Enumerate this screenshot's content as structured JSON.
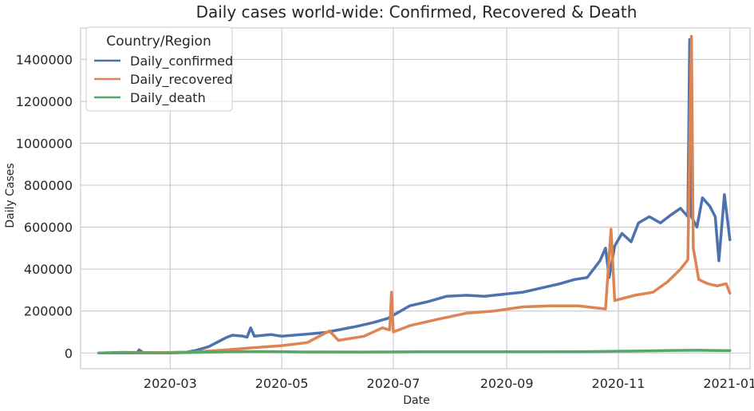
{
  "chart_data": {
    "type": "line",
    "title": "Daily cases world-wide: Confirmed, Recovered & Death",
    "xlabel": "Date",
    "ylabel": "Daily Cases",
    "x_ticks": [
      "2020-03",
      "2020-05",
      "2020-07",
      "2020-09",
      "2020-11",
      "2021-01"
    ],
    "y_ticks": [
      "0",
      "200000",
      "400000",
      "600000",
      "800000",
      "1000000",
      "1200000",
      "1400000"
    ],
    "ylim": [
      -75000,
      1550000
    ],
    "xlim": [
      "2020-01-12",
      "2021-01-12"
    ],
    "grid": true,
    "legend": {
      "title": "Country/Region",
      "placement": "top-left"
    },
    "series": [
      {
        "name": "Daily_confirmed",
        "color": "#4c72b0",
        "points": [
          [
            "2020-01-22",
            0
          ],
          [
            "2020-02-05",
            3000
          ],
          [
            "2020-02-12",
            2000
          ],
          [
            "2020-02-13",
            15000
          ],
          [
            "2020-02-15",
            2500
          ],
          [
            "2020-03-01",
            2000
          ],
          [
            "2020-03-10",
            4000
          ],
          [
            "2020-03-15",
            12000
          ],
          [
            "2020-03-22",
            30000
          ],
          [
            "2020-04-01",
            75000
          ],
          [
            "2020-04-04",
            85000
          ],
          [
            "2020-04-10",
            80000
          ],
          [
            "2020-04-12",
            75000
          ],
          [
            "2020-04-14",
            120000
          ],
          [
            "2020-04-16",
            80000
          ],
          [
            "2020-04-25",
            88000
          ],
          [
            "2020-05-01",
            80000
          ],
          [
            "2020-05-15",
            90000
          ],
          [
            "2020-05-25",
            98000
          ],
          [
            "2020-06-01",
            110000
          ],
          [
            "2020-06-10",
            125000
          ],
          [
            "2020-06-20",
            145000
          ],
          [
            "2020-06-28",
            165000
          ],
          [
            "2020-07-05",
            200000
          ],
          [
            "2020-07-10",
            225000
          ],
          [
            "2020-07-20",
            245000
          ],
          [
            "2020-07-30",
            270000
          ],
          [
            "2020-08-10",
            275000
          ],
          [
            "2020-08-20",
            270000
          ],
          [
            "2020-08-30",
            280000
          ],
          [
            "2020-09-10",
            290000
          ],
          [
            "2020-09-20",
            310000
          ],
          [
            "2020-09-30",
            330000
          ],
          [
            "2020-10-08",
            350000
          ],
          [
            "2020-10-15",
            360000
          ],
          [
            "2020-10-22",
            440000
          ],
          [
            "2020-10-25",
            500000
          ],
          [
            "2020-10-27",
            360000
          ],
          [
            "2020-10-30",
            510000
          ],
          [
            "2020-11-03",
            570000
          ],
          [
            "2020-11-08",
            530000
          ],
          [
            "2020-11-12",
            620000
          ],
          [
            "2020-11-18",
            650000
          ],
          [
            "2020-11-24",
            620000
          ],
          [
            "2020-11-30",
            660000
          ],
          [
            "2020-12-05",
            690000
          ],
          [
            "2020-12-09",
            650000
          ],
          [
            "2020-12-10",
            1495000
          ],
          [
            "2020-12-11",
            650000
          ],
          [
            "2020-12-14",
            600000
          ],
          [
            "2020-12-17",
            740000
          ],
          [
            "2020-12-21",
            700000
          ],
          [
            "2020-12-24",
            650000
          ],
          [
            "2020-12-26",
            440000
          ],
          [
            "2020-12-29",
            755000
          ],
          [
            "2021-01-01",
            540000
          ]
        ]
      },
      {
        "name": "Daily_recovered",
        "color": "#dd8452",
        "points": [
          [
            "2020-01-22",
            0
          ],
          [
            "2020-02-15",
            1500
          ],
          [
            "2020-03-01",
            2500
          ],
          [
            "2020-03-15",
            5000
          ],
          [
            "2020-04-01",
            15000
          ],
          [
            "2020-04-15",
            25000
          ],
          [
            "2020-05-01",
            35000
          ],
          [
            "2020-05-15",
            50000
          ],
          [
            "2020-05-27",
            105000
          ],
          [
            "2020-06-01",
            60000
          ],
          [
            "2020-06-15",
            80000
          ],
          [
            "2020-06-25",
            120000
          ],
          [
            "2020-06-29",
            110000
          ],
          [
            "2020-06-30",
            290000
          ],
          [
            "2020-07-01",
            100000
          ],
          [
            "2020-07-10",
            130000
          ],
          [
            "2020-07-25",
            160000
          ],
          [
            "2020-08-10",
            190000
          ],
          [
            "2020-08-25",
            200000
          ],
          [
            "2020-09-10",
            220000
          ],
          [
            "2020-09-25",
            225000
          ],
          [
            "2020-10-10",
            225000
          ],
          [
            "2020-10-25",
            210000
          ],
          [
            "2020-10-28",
            590000
          ],
          [
            "2020-10-30",
            250000
          ],
          [
            "2020-11-10",
            275000
          ],
          [
            "2020-11-20",
            290000
          ],
          [
            "2020-11-28",
            340000
          ],
          [
            "2020-12-05",
            400000
          ],
          [
            "2020-12-09",
            445000
          ],
          [
            "2020-12-11",
            1510000
          ],
          [
            "2020-12-12",
            500000
          ],
          [
            "2020-12-15",
            350000
          ],
          [
            "2020-12-20",
            330000
          ],
          [
            "2020-12-25",
            320000
          ],
          [
            "2020-12-30",
            330000
          ],
          [
            "2021-01-01",
            285000
          ]
        ]
      },
      {
        "name": "Daily_death",
        "color": "#55a868",
        "points": [
          [
            "2020-01-22",
            0
          ],
          [
            "2020-03-01",
            500
          ],
          [
            "2020-04-01",
            6000
          ],
          [
            "2020-04-20",
            7000
          ],
          [
            "2020-05-15",
            5000
          ],
          [
            "2020-06-15",
            4500
          ],
          [
            "2020-07-15",
            5500
          ],
          [
            "2020-08-15",
            6000
          ],
          [
            "2020-09-15",
            6000
          ],
          [
            "2020-10-15",
            6500
          ],
          [
            "2020-11-15",
            10000
          ],
          [
            "2020-12-01",
            12000
          ],
          [
            "2020-12-15",
            13000
          ],
          [
            "2021-01-01",
            11000
          ]
        ]
      }
    ]
  }
}
